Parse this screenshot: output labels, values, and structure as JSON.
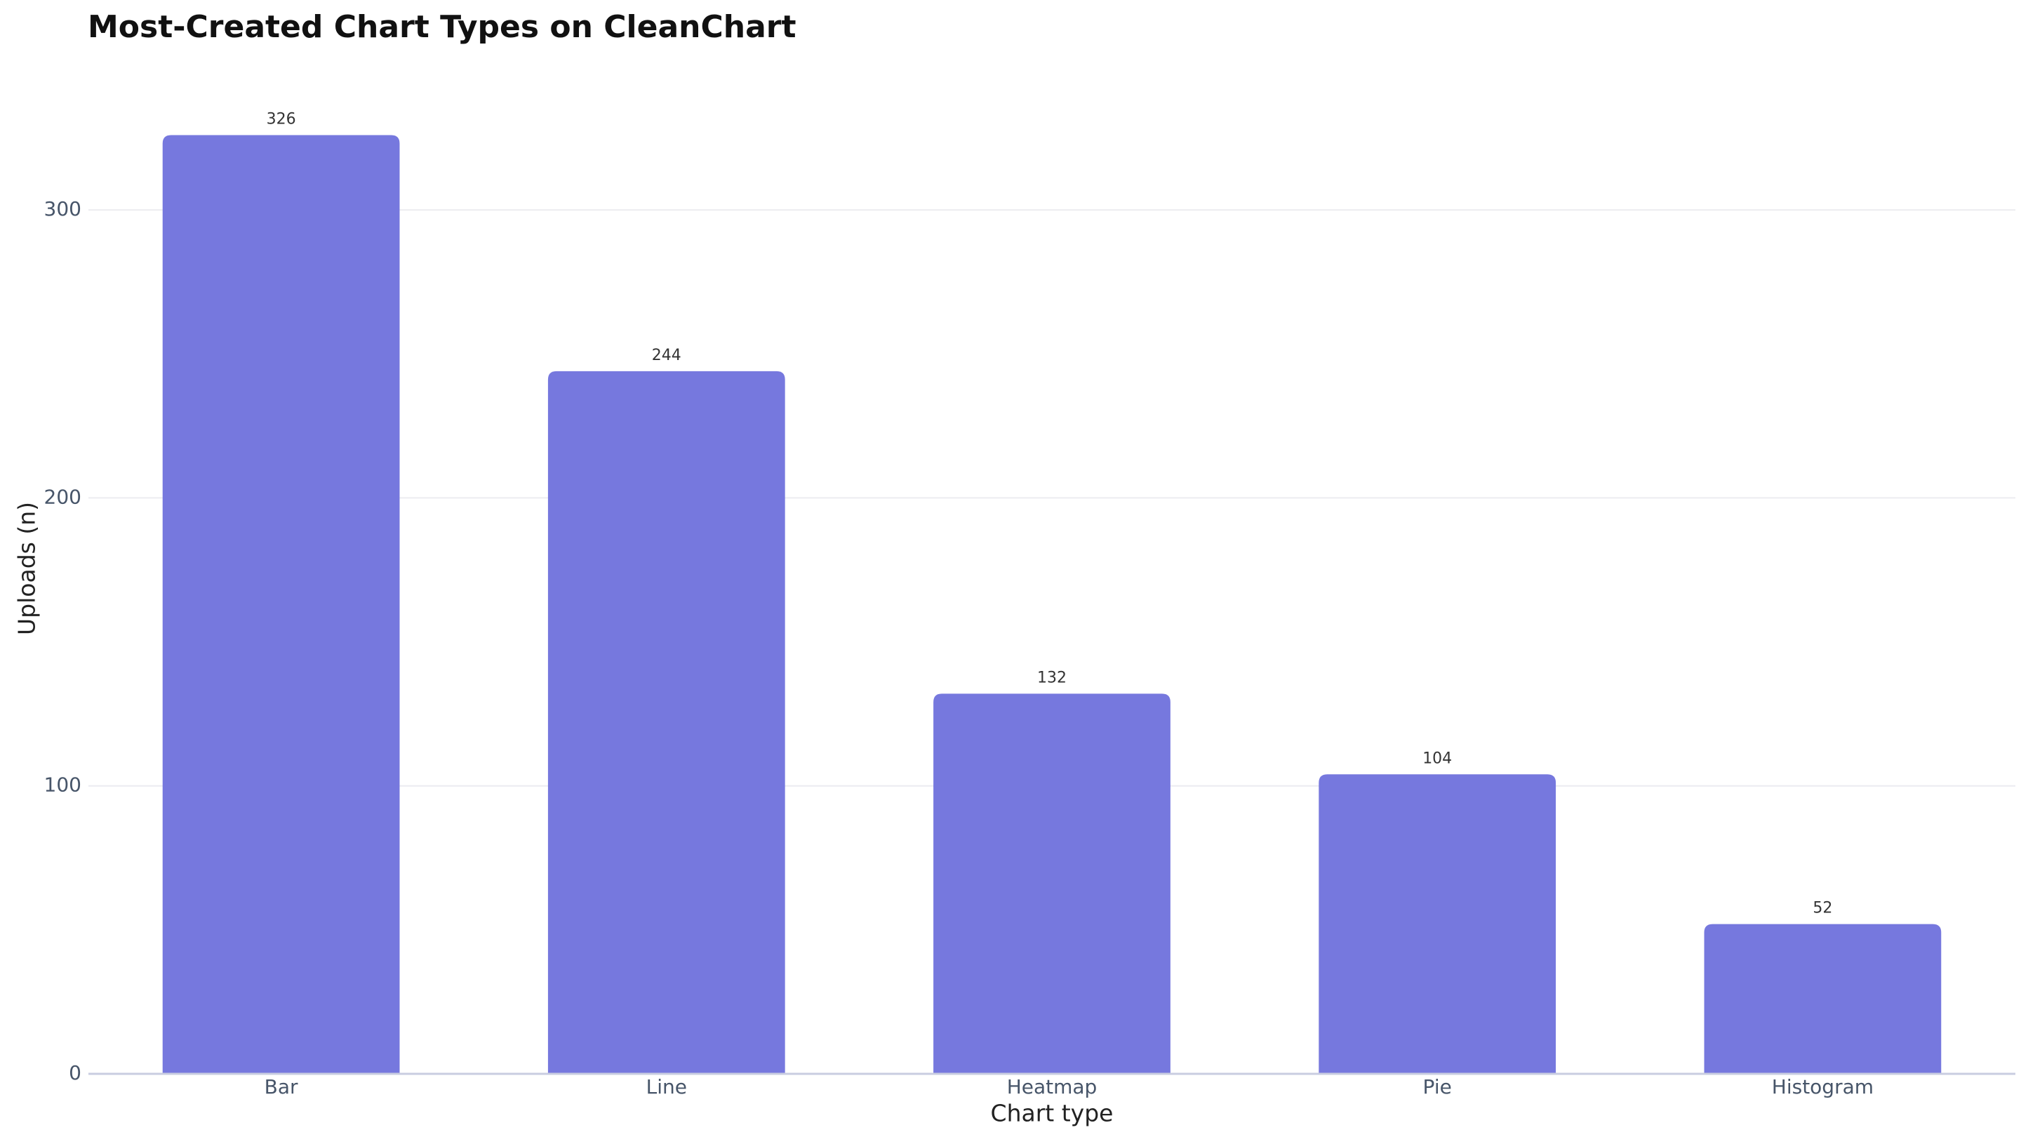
{
  "chart_data": {
    "type": "bar",
    "title": "Most-Created Chart Types on CleanChart",
    "x_label": "Chart type",
    "y_label": "Uploads (n)",
    "categories": [
      "Bar",
      "Line",
      "Heatmap",
      "Pie",
      "Histogram"
    ],
    "values": [
      326,
      244,
      132,
      104,
      52
    ],
    "color": "#7678de",
    "ylim": [
      0,
      340
    ],
    "yticks": [
      0,
      100,
      200,
      300
    ],
    "grid": true
  }
}
